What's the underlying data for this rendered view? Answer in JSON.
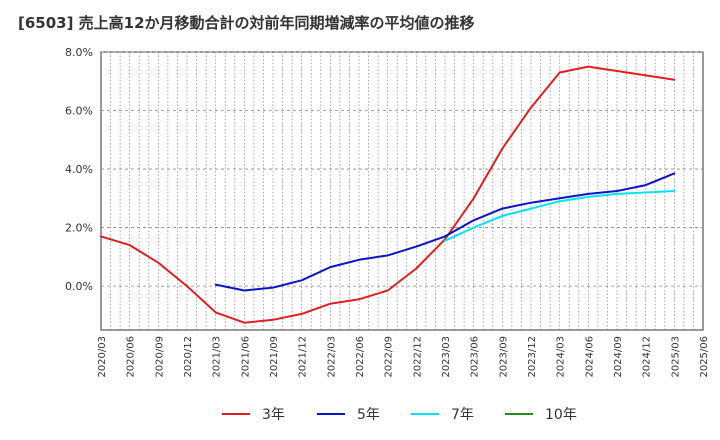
{
  "chart_data": {
    "type": "line",
    "title": "[6503]  売上高12か月移動合計の対前年同期増減率の平均値の推移",
    "xlabel": "",
    "ylabel": "",
    "ylim": [
      -1.5,
      8.0
    ],
    "yticks": [
      "8.0%",
      "6.0%",
      "4.0%",
      "2.0%",
      "0.0%"
    ],
    "ytick_values": [
      8,
      6,
      4,
      2,
      0
    ],
    "x": [
      "2020/03",
      "2020/06",
      "2020/09",
      "2020/12",
      "2021/03",
      "2021/06",
      "2021/09",
      "2021/12",
      "2022/03",
      "2022/06",
      "2022/09",
      "2022/12",
      "2023/03",
      "2023/06",
      "2023/09",
      "2023/12",
      "2024/03",
      "2024/06",
      "2024/09",
      "2024/12",
      "2025/03",
      "2025/06"
    ],
    "grid": true,
    "legend_position": "bottom",
    "series": [
      {
        "name": "3年",
        "color": "#e02020",
        "values": [
          1.7,
          1.4,
          0.8,
          0.0,
          -0.9,
          -1.25,
          -1.15,
          -0.95,
          -0.6,
          -0.45,
          -0.15,
          0.6,
          1.6,
          3.0,
          4.7,
          6.1,
          7.3,
          7.5,
          7.35,
          7.2,
          7.05,
          null
        ]
      },
      {
        "name": "5年",
        "color": "#0a14c8",
        "values": [
          null,
          null,
          null,
          null,
          0.05,
          -0.15,
          -0.05,
          0.2,
          0.65,
          0.9,
          1.05,
          1.35,
          1.7,
          2.25,
          2.65,
          2.85,
          3.0,
          3.15,
          3.25,
          3.45,
          3.85,
          null
        ]
      },
      {
        "name": "7年",
        "color": "#00e5f0",
        "values": [
          null,
          null,
          null,
          null,
          null,
          null,
          null,
          null,
          null,
          null,
          null,
          null,
          1.55,
          2.0,
          2.4,
          2.65,
          2.9,
          3.05,
          3.15,
          3.2,
          3.25,
          null
        ]
      },
      {
        "name": "10年",
        "color": "#228b22",
        "values": [
          null,
          null,
          null,
          null,
          null,
          null,
          null,
          null,
          null,
          null,
          null,
          null,
          null,
          null,
          null,
          null,
          null,
          null,
          null,
          null,
          null,
          null
        ]
      }
    ]
  }
}
